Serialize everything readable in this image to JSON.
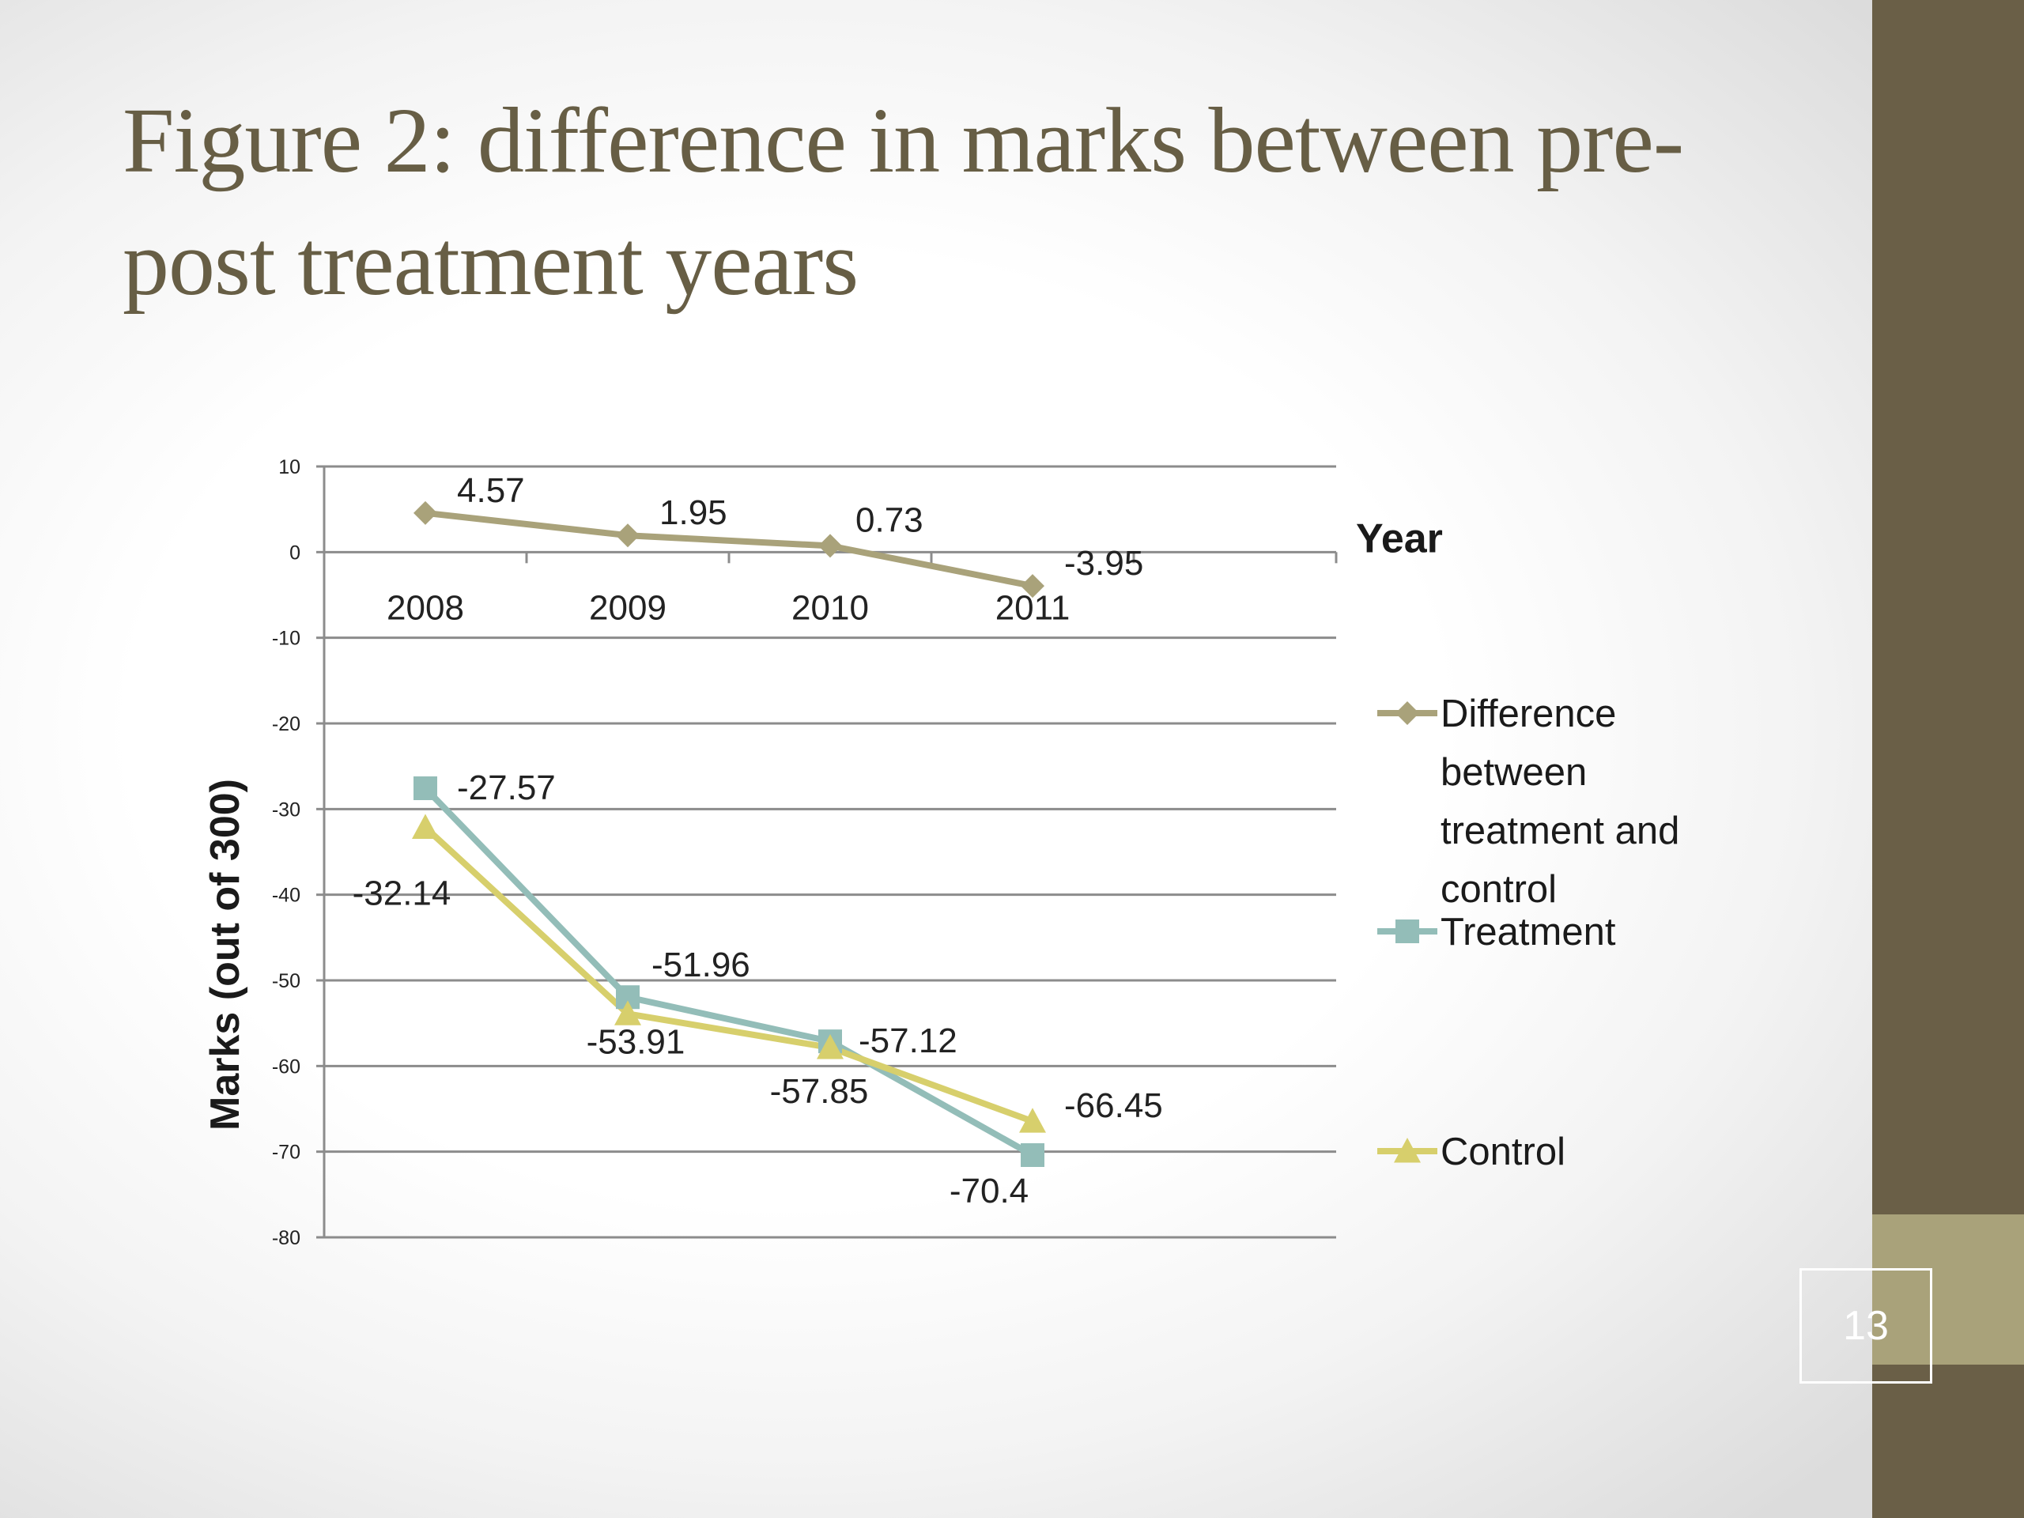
{
  "slide": {
    "title": "Figure 2: difference in marks between pre-post treatment years",
    "page_number": "13"
  },
  "colors": {
    "title": "#675e45",
    "sidebar": "#6a5f47",
    "sidebar_band": "#a9a27a",
    "difference": "#a9a27a",
    "treatment": "#93bdb8",
    "control": "#d7cf6c",
    "gridline": "#8c8c8c"
  },
  "chart_data": {
    "type": "line",
    "xlabel": "Year",
    "ylabel": "Marks (out of 300)",
    "categories": [
      "2008",
      "2009",
      "2010",
      "2011"
    ],
    "ylim": [
      -80,
      10
    ],
    "yticks": [
      10,
      0,
      -10,
      -20,
      -30,
      -40,
      -50,
      -60,
      -70,
      -80
    ],
    "grid": true,
    "legend_position": "right",
    "series": [
      {
        "name": "Difference between treatment and control",
        "legend_lines": [
          "Difference",
          "between",
          "treatment and",
          "control"
        ],
        "marker": "diamond",
        "color": "#a9a27a",
        "values": [
          4.57,
          1.95,
          0.73,
          -3.95
        ],
        "labels": [
          "4.57",
          "1.95",
          "0.73",
          "-3.95"
        ]
      },
      {
        "name": "Treatment",
        "legend_lines": [
          "Treatment"
        ],
        "marker": "square",
        "color": "#93bdb8",
        "values": [
          -27.57,
          -51.96,
          -57.12,
          -70.4
        ],
        "labels": [
          "-27.57",
          "-51.96",
          "-57.12",
          "-70.4"
        ]
      },
      {
        "name": "Control",
        "legend_lines": [
          "Control"
        ],
        "marker": "triangle",
        "color": "#d7cf6c",
        "values": [
          -32.14,
          -53.91,
          -57.85,
          -66.45
        ],
        "labels": [
          "-32.14",
          "-53.91",
          "-57.85",
          "-66.45"
        ]
      }
    ]
  }
}
